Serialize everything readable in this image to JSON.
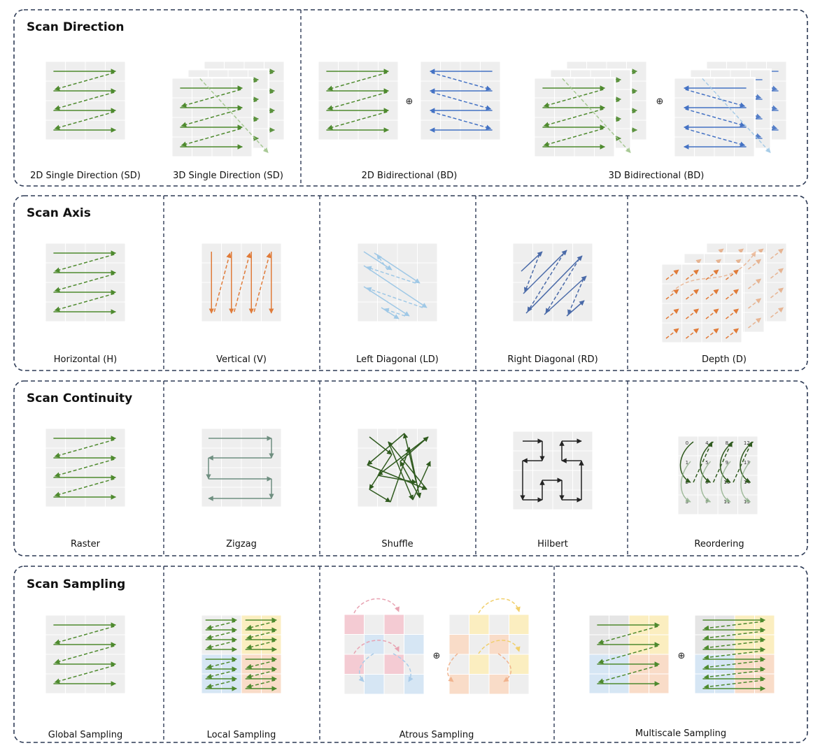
{
  "sections": [
    {
      "title": "Scan Direction",
      "captions": [
        "2D Single Direction (SD)",
        "3D Single Direction (SD)",
        "2D Bidirectional (BD)",
        "3D Bidirectional (BD)"
      ]
    },
    {
      "title": "Scan Axis",
      "captions": [
        "Horizontal (H)",
        "Vertical (V)",
        "Left Diagonal (LD)",
        "Right Diagonal (RD)",
        "Depth (D)"
      ]
    },
    {
      "title": "Scan Continuity",
      "captions": [
        "Raster",
        "Zigzag",
        "Shuffle",
        "Hilbert",
        "Reordering"
      ]
    },
    {
      "title": "Scan Sampling",
      "captions": [
        "Global Sampling",
        "Local Sampling",
        "Atrous Sampling",
        "Multiscale Sampling"
      ]
    }
  ],
  "operator_symbol": "⊕",
  "reorder_labels": [
    "0",
    "1",
    "2",
    "3",
    "4",
    "5",
    "6",
    "7",
    "8",
    "9",
    "10",
    "11",
    "12",
    "13",
    "14",
    "15"
  ],
  "colors": {
    "green": "#4e8a2e",
    "blue": "#4472c4",
    "orange": "#e07b39",
    "light_blue": "#9fc8e6",
    "slate_blue": "#4a6aa8",
    "gray_green": "#6f8f80",
    "dark_green": "#2f5a1e",
    "black": "#222222",
    "border": "#2d3a55",
    "grid_cell": "#eeeeee",
    "pink": "#f4cbd3",
    "cell_blue": "#d6e6f4",
    "yellow": "#fbeec0",
    "peach": "#f9dcc8"
  }
}
